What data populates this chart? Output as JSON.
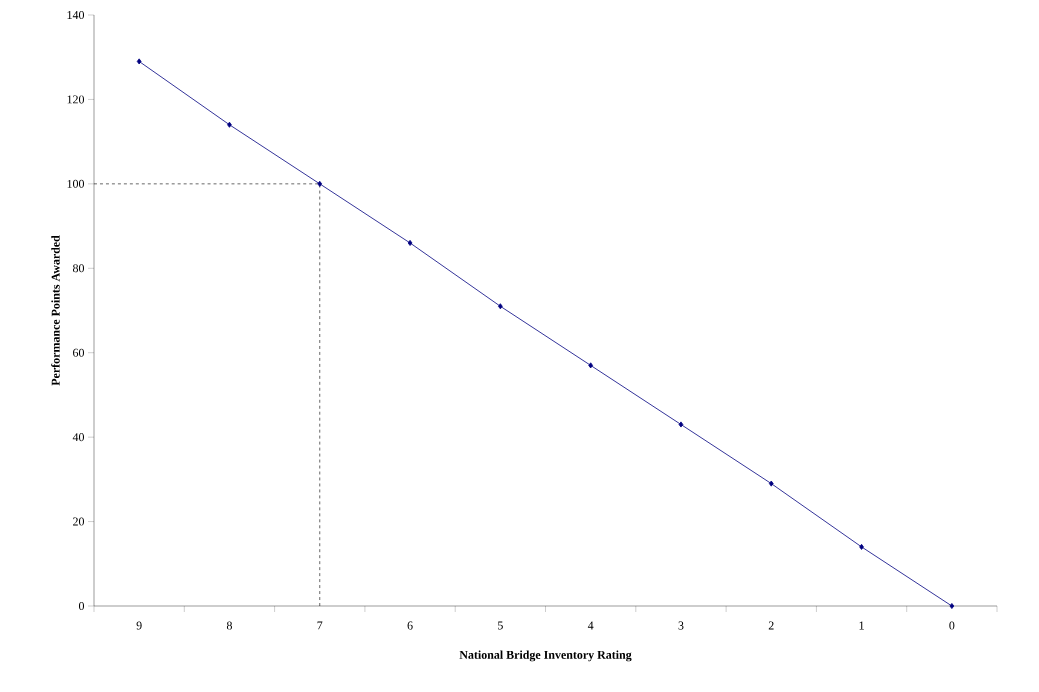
{
  "chart_data": {
    "type": "line",
    "xlabel": "National Bridge Inventory Rating",
    "ylabel": "Performance Points Awarded",
    "categories": [
      "9",
      "8",
      "7",
      "6",
      "5",
      "4",
      "3",
      "2",
      "1",
      "0"
    ],
    "series": [
      {
        "color": "#000080",
        "values": [
          129,
          114,
          100,
          86,
          71,
          57,
          43,
          29,
          14,
          0
        ]
      }
    ],
    "marker": "diamond",
    "line_style": "solid",
    "ylim": [
      0,
      140
    ],
    "yticks": [
      0,
      20,
      40,
      60,
      80,
      100,
      120,
      140
    ],
    "ref_lines": [
      {
        "axis": "y",
        "value": 100,
        "color": "#000000",
        "line_style": "dashed"
      },
      {
        "axis": "x",
        "value": "7",
        "color": "#000000",
        "line_style": "dashed"
      }
    ]
  }
}
